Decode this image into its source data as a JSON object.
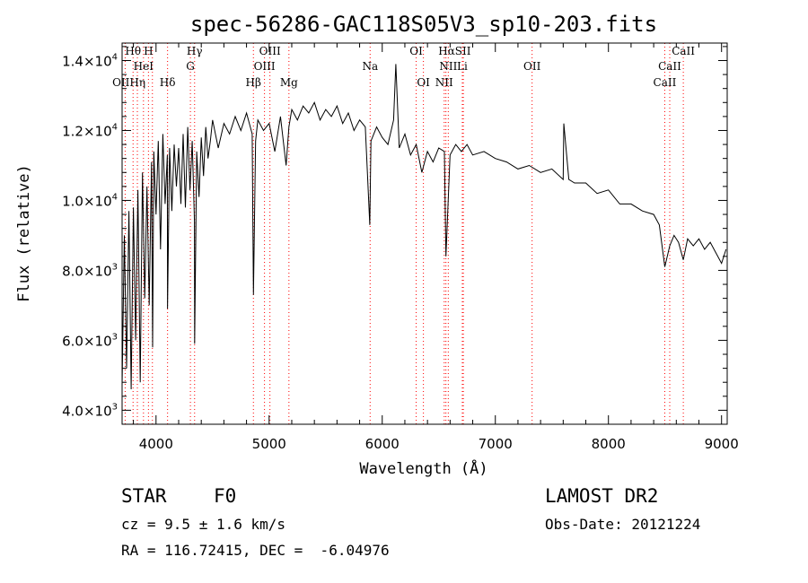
{
  "chart_data": {
    "type": "line",
    "title": "spec-56286-GAC118S05V3_sp10-203.fits",
    "xlabel": "Wavelength (Å)",
    "ylabel": "Flux (relative)",
    "xlim": [
      3700,
      9050
    ],
    "ylim": [
      3600,
      14500
    ],
    "x_ticks": [
      4000,
      5000,
      6000,
      7000,
      8000,
      9000
    ],
    "x_tick_labels": [
      "4000",
      "5000",
      "6000",
      "7000",
      "8000",
      "9000"
    ],
    "y_ticks": [
      4000,
      6000,
      8000,
      10000,
      12000,
      14000
    ],
    "y_tick_labels": [
      {
        "mantissa": "4.0×10",
        "exp": "3"
      },
      {
        "mantissa": "6.0×10",
        "exp": "3"
      },
      {
        "mantissa": "8.0×10",
        "exp": "3"
      },
      {
        "mantissa": "1.0×10",
        "exp": "4"
      },
      {
        "mantissa": "1.2×10",
        "exp": "4"
      },
      {
        "mantissa": "1.4×10",
        "exp": "4"
      }
    ],
    "series": [
      {
        "x": [
          3700,
          3720,
          3740,
          3760,
          3780,
          3800,
          3820,
          3840,
          3860,
          3880,
          3900,
          3920,
          3940,
          3960,
          3970,
          3980,
          4000,
          4020,
          4040,
          4060,
          4080,
          4100,
          4102,
          4120,
          4140,
          4160,
          4180,
          4200,
          4220,
          4240,
          4260,
          4280,
          4300,
          4320,
          4340,
          4341,
          4360,
          4380,
          4400,
          4420,
          4440,
          4460,
          4480,
          4500,
          4550,
          4600,
          4650,
          4700,
          4750,
          4800,
          4850,
          4861,
          4880,
          4900,
          4950,
          5000,
          5050,
          5100,
          5150,
          5175,
          5200,
          5250,
          5300,
          5350,
          5400,
          5450,
          5500,
          5550,
          5600,
          5650,
          5700,
          5750,
          5800,
          5850,
          5890,
          5900,
          5950,
          6000,
          6050,
          6100,
          6120,
          6150,
          6200,
          6250,
          6300,
          6350,
          6400,
          6450,
          6500,
          6550,
          6563,
          6600,
          6650,
          6700,
          6750,
          6800,
          6900,
          7000,
          7100,
          7200,
          7300,
          7400,
          7500,
          7600,
          7605,
          7650,
          7700,
          7800,
          7900,
          8000,
          8100,
          8200,
          8300,
          8400,
          8450,
          8498,
          8542,
          8580,
          8620,
          8662,
          8700,
          8750,
          8800,
          8850,
          8900,
          8950,
          9000,
          9040
        ],
        "y": [
          4700,
          9000,
          5200,
          9700,
          4600,
          9800,
          6000,
          10300,
          4800,
          10800,
          7200,
          10400,
          7000,
          11100,
          5800,
          11400,
          9600,
          11700,
          8600,
          11900,
          9900,
          11300,
          6900,
          11500,
          9700,
          11600,
          10400,
          11500,
          9900,
          11900,
          9800,
          12100,
          10300,
          11700,
          9400,
          5900,
          11400,
          10100,
          11800,
          10700,
          12100,
          11200,
          11700,
          12300,
          11500,
          12200,
          11900,
          12400,
          12000,
          12500,
          11900,
          7300,
          11700,
          12300,
          12000,
          12200,
          11400,
          12400,
          11000,
          12100,
          12600,
          12300,
          12700,
          12500,
          12800,
          12300,
          12600,
          12400,
          12700,
          12200,
          12500,
          12000,
          12300,
          12100,
          9300,
          11700,
          12100,
          11800,
          11600,
          12300,
          13900,
          11500,
          11900,
          11300,
          11600,
          10800,
          11400,
          11100,
          11500,
          11400,
          8400,
          11300,
          11600,
          11400,
          11600,
          11300,
          11400,
          11200,
          11100,
          10900,
          11000,
          10800,
          10900,
          10600,
          12200,
          10600,
          10500,
          10500,
          10200,
          10300,
          9900,
          9900,
          9700,
          9600,
          9300,
          8100,
          8700,
          9000,
          8800,
          8300,
          8900,
          8700,
          8900,
          8600,
          8800,
          8500,
          8200,
          8600
        ]
      }
    ],
    "lines": [
      {
        "name": "OII",
        "wl": 3727
      },
      {
        "name": "Hθ",
        "wl": 3797
      },
      {
        "name": "Hη",
        "wl": 3835
      },
      {
        "name": "HeI",
        "wl": 3889
      },
      {
        "name": "H",
        "wl": 3933
      },
      {
        "name": "H",
        "wl": 3968
      },
      {
        "name": "Hδ",
        "wl": 4102
      },
      {
        "name": "G",
        "wl": 4304
      },
      {
        "name": "Hγ",
        "wl": 4341
      },
      {
        "name": "Hβ",
        "wl": 4861
      },
      {
        "name": "OIII",
        "wl": 4959
      },
      {
        "name": "OIII",
        "wl": 5007
      },
      {
        "name": "Mg",
        "wl": 5175
      },
      {
        "name": "Na",
        "wl": 5893
      },
      {
        "name": "OI",
        "wl": 6300
      },
      {
        "name": "OI",
        "wl": 6364
      },
      {
        "name": "NII",
        "wl": 6548
      },
      {
        "name": "Hα",
        "wl": 6563
      },
      {
        "name": "NII",
        "wl": 6584
      },
      {
        "name": "SII",
        "wl": 6717
      },
      {
        "name": "Li",
        "wl": 6708
      },
      {
        "name": "OII",
        "wl": 7325
      },
      {
        "name": "CaII",
        "wl": 8498
      },
      {
        "name": "CaII",
        "wl": 8542
      },
      {
        "name": "CaII",
        "wl": 8662
      }
    ],
    "line_labels": [
      {
        "text": "Hθ",
        "wl": 3797,
        "row": 1
      },
      {
        "text": "H",
        "wl": 3933,
        "row": 1
      },
      {
        "text": "Hγ",
        "wl": 4341,
        "row": 1
      },
      {
        "text": "OIII",
        "wl": 5007,
        "row": 1
      },
      {
        "text": "OI",
        "wl": 6300,
        "row": 1
      },
      {
        "text": "HαSII",
        "wl": 6640,
        "row": 1
      },
      {
        "text": "CaII",
        "wl": 8662,
        "row": 1
      },
      {
        "text": "HeI",
        "wl": 3889,
        "row": 2
      },
      {
        "text": "G",
        "wl": 4304,
        "row": 2
      },
      {
        "text": "OIII",
        "wl": 4959,
        "row": 2
      },
      {
        "text": "Na",
        "wl": 5893,
        "row": 2
      },
      {
        "text": "NII",
        "wl": 6584,
        "row": 2
      },
      {
        "text": "Li",
        "wl": 6708,
        "row": 2
      },
      {
        "text": "OII",
        "wl": 7325,
        "row": 2
      },
      {
        "text": "CaII",
        "wl": 8542,
        "row": 2
      },
      {
        "text": "OIIHη",
        "wl": 3760,
        "row": 3
      },
      {
        "text": "Hδ",
        "wl": 4102,
        "row": 3
      },
      {
        "text": "Hβ",
        "wl": 4861,
        "row": 3
      },
      {
        "text": "Mg",
        "wl": 5175,
        "row": 3
      },
      {
        "text": "OI",
        "wl": 6364,
        "row": 3
      },
      {
        "text": "NII",
        "wl": 6548,
        "row": 3
      },
      {
        "text": "CaII",
        "wl": 8498,
        "row": 3
      }
    ],
    "colors": {
      "spectrum": "#000000",
      "line_marker": "#ff0000",
      "axes": "#000000"
    }
  },
  "info": {
    "class": "STAR",
    "subclass": "F0",
    "survey": "LAMOST DR2",
    "cz": "cz = 9.5 ± 1.6 km/s",
    "obs_date": "Obs-Date: 20121224",
    "coords": "RA = 116.72415, DEC =  -6.04976"
  }
}
